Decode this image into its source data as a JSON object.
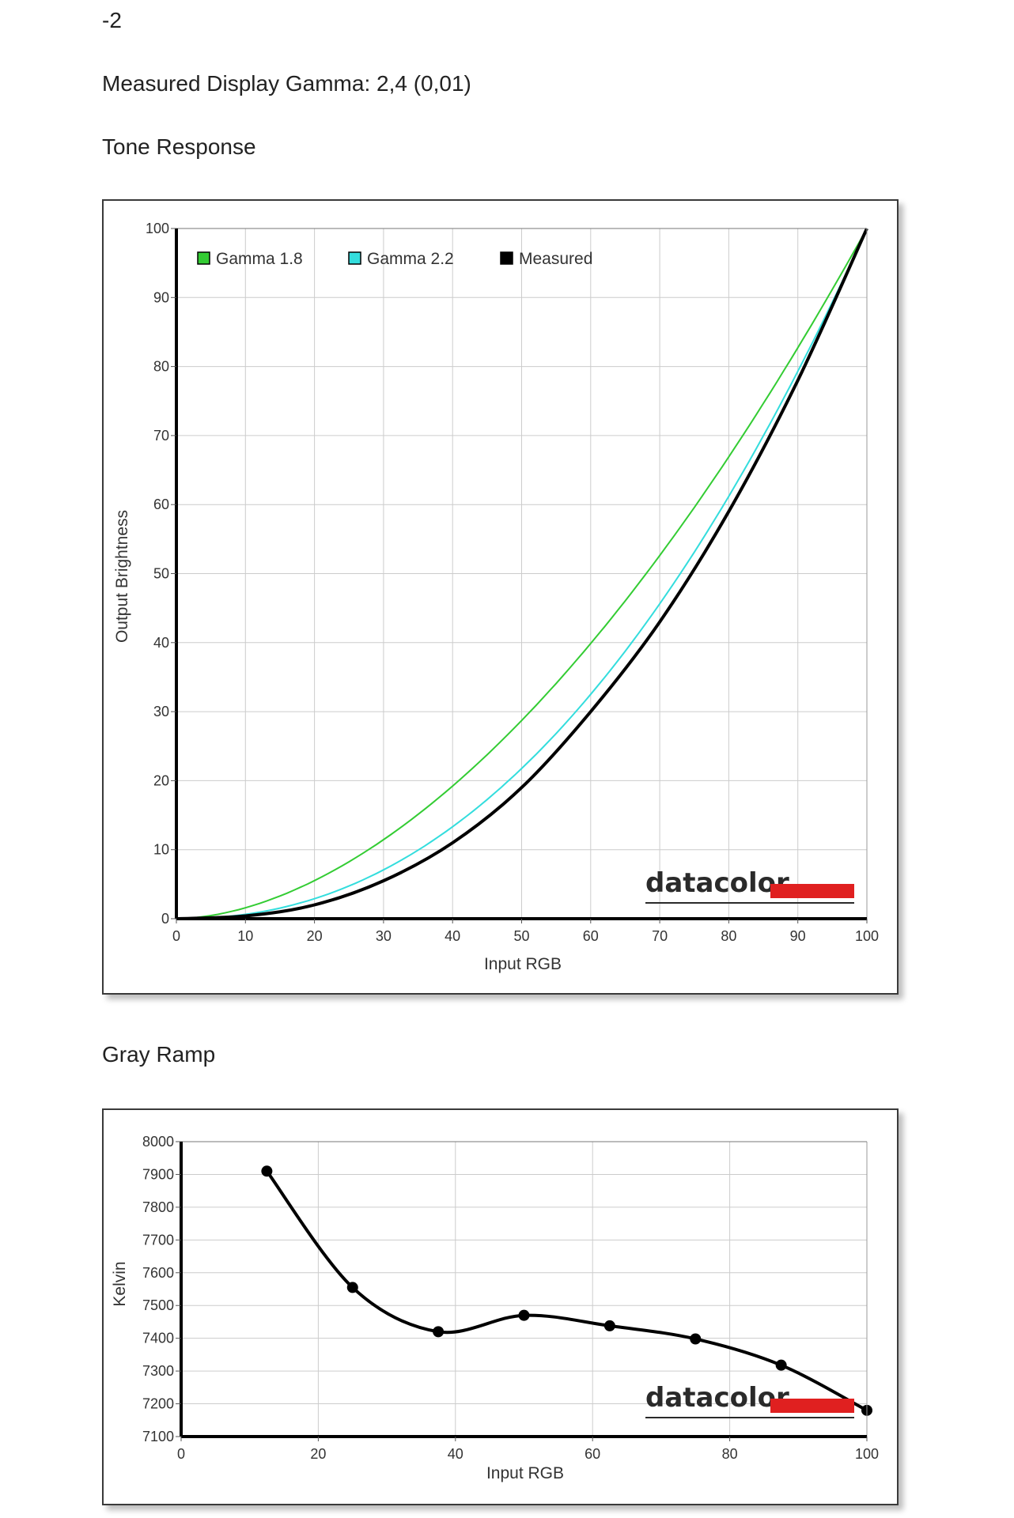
{
  "header": {
    "top_value": "-2",
    "measured_gamma": "Measured Display Gamma: 2,4 (0,01)",
    "tone_title": "Tone Response",
    "gray_title": "Gray Ramp"
  },
  "logo_text": "datacolor",
  "colors": {
    "gamma18": "#33cc33",
    "gamma22": "#33dddd",
    "measured": "#000000",
    "logo_red": "#e02020",
    "grid": "#cccccc"
  },
  "chart_data": [
    {
      "type": "line",
      "xlabel": "Input RGB",
      "ylabel": "Output Brightness",
      "xlim": [
        0,
        100
      ],
      "ylim": [
        0,
        100
      ],
      "x_ticks": [
        0,
        10,
        20,
        30,
        40,
        50,
        60,
        70,
        80,
        90,
        100
      ],
      "y_ticks": [
        0,
        10,
        20,
        30,
        40,
        50,
        60,
        70,
        80,
        90,
        100
      ],
      "grid": true,
      "legend_position": "top-left",
      "series": [
        {
          "name": "Gamma 1.8",
          "color": "#33cc33",
          "gamma": 1.8
        },
        {
          "name": "Gamma 2.2",
          "color": "#33dddd",
          "gamma": 2.2
        },
        {
          "name": "Measured",
          "color": "#000000",
          "x": [
            0,
            10,
            20,
            30,
            40,
            50,
            60,
            70,
            80,
            90,
            100
          ],
          "y": [
            0,
            0.4,
            2,
            5.5,
            11,
            19,
            30,
            43,
            59,
            78,
            100
          ]
        }
      ]
    },
    {
      "type": "line",
      "xlabel": "Input RGB",
      "ylabel": "Kelvin",
      "xlim": [
        0,
        100
      ],
      "ylim": [
        7100,
        8000
      ],
      "x_ticks": [
        0,
        20,
        40,
        60,
        80,
        100
      ],
      "y_ticks": [
        7100,
        7200,
        7300,
        7400,
        7500,
        7600,
        7700,
        7800,
        7900,
        8000
      ],
      "grid": true,
      "series": [
        {
          "color": "#000000",
          "x": [
            12.5,
            25,
            37.5,
            50,
            62.5,
            75,
            87.5,
            100
          ],
          "y": [
            7910,
            7555,
            7420,
            7470,
            7438,
            7398,
            7318,
            7180
          ]
        }
      ]
    }
  ]
}
